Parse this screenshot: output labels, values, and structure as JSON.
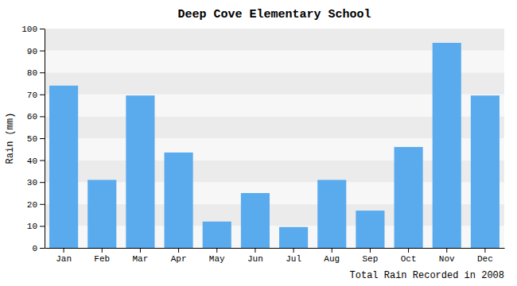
{
  "chart_data": {
    "type": "bar",
    "title": "Deep Cove Elementary School",
    "xlabel": "Total Rain Recorded in 2008",
    "ylabel": "Rain (mm)",
    "categories": [
      "Jan",
      "Feb",
      "Mar",
      "Apr",
      "May",
      "Jun",
      "Jul",
      "Aug",
      "Sep",
      "Oct",
      "Nov",
      "Dec"
    ],
    "values": [
      74,
      31,
      69.5,
      43.5,
      12,
      25,
      9.5,
      31,
      17,
      46,
      93.5,
      69.5
    ],
    "color": "#5aabee",
    "ylim": [
      0,
      100
    ],
    "yticks": [
      0,
      10,
      20,
      30,
      40,
      50,
      60,
      70,
      80,
      90,
      100
    ],
    "grid": true
  }
}
